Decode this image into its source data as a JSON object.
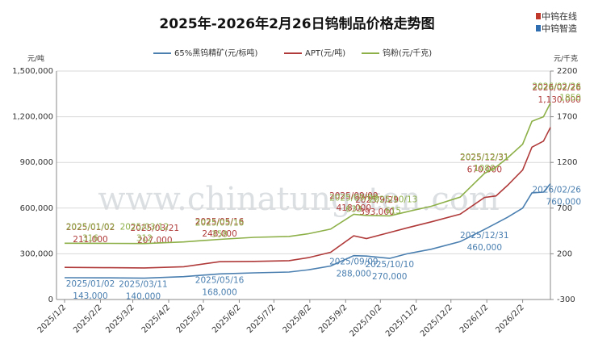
{
  "chart_data": {
    "type": "line",
    "title": "2025年-2026年2月26日钨制品价格走势图",
    "brand": [
      "中钨在线",
      "中钨智造"
    ],
    "watermark": "www.chinatungsten.com",
    "ylabel": "元/吨",
    "y2label": "元/千克",
    "xlim": [
      "2025/1/2",
      "2026/2/26"
    ],
    "xticks": [
      "2025/1/2",
      "2025/2/2",
      "2025/3/2",
      "2025/4/2",
      "2025/5/2",
      "2025/6/2",
      "2025/7/2",
      "2025/8/2",
      "2025/9/2",
      "2025/10/2",
      "2025/11/2",
      "2025/12/2",
      "2026/1/2",
      "2026/2/2"
    ],
    "ylim": [
      0,
      1500000
    ],
    "yticks": [
      0,
      {
        "value": 300000,
        "label": "300,000"
      },
      {
        "value": 600000,
        "label": "600,000"
      },
      {
        "value": 900000,
        "label": "900,000"
      },
      {
        "value": 1200000,
        "label": "1,200,000"
      },
      {
        "value": 1500000,
        "label": "1,500,000"
      }
    ],
    "y2lim": [
      -300,
      2200
    ],
    "y2ticks": [
      -300,
      200,
      700,
      1200,
      1700,
      2200
    ],
    "grid": true,
    "x": [
      "2025/1/2",
      "2025/2/10",
      "2025/3/12",
      "2025/4/15",
      "2025/5/16",
      "2025/6/15",
      "2025/7/15",
      "2025/8/1",
      "2025/8/20",
      "2025/9/9",
      "2025/9/20",
      "2025/10/10",
      "2025/10/25",
      "2025/11/15",
      "2025/12/10",
      "2025/12/31",
      "2026/1/10",
      "2026/1/20",
      "2026/2/2",
      "2026/2/10",
      "2026/2/20",
      "2026/2/26"
    ],
    "series": [
      {
        "name": "65%黑钨精矿(元/标吨)",
        "color": "#4a7fb0",
        "values": [
          143000,
          142000,
          140000,
          150000,
          168000,
          175000,
          180000,
          195000,
          220000,
          288000,
          285000,
          270000,
          300000,
          330000,
          380000,
          460000,
          500000,
          540000,
          600000,
          700000,
          705000,
          760000
        ],
        "annotations": [
          {
            "date": "2025/01/02",
            "value": 143000,
            "label": "143,000"
          },
          {
            "date": "2025/03/11",
            "value": 140000,
            "label": "140,000"
          },
          {
            "date": "2025/05/16",
            "value": 168000,
            "label": "168,000"
          },
          {
            "date": "2025/09/09",
            "value": 288000,
            "label": "288,000"
          },
          {
            "date": "2025/10/10",
            "value": 270000,
            "label": "270,000"
          },
          {
            "date": "2025/12/31",
            "value": 460000,
            "label": "460,000"
          },
          {
            "date": "2026/02/26",
            "value": 760000,
            "label": "760,000"
          }
        ]
      },
      {
        "name": "APT(元/吨)",
        "color": "#b03a3a",
        "values": [
          211000,
          209000,
          207000,
          215000,
          248000,
          250000,
          255000,
          275000,
          310000,
          418000,
          400000,
          440000,
          470000,
          510000,
          560000,
          670000,
          680000,
          750000,
          850000,
          1000000,
          1040000,
          1130000
        ],
        "annotations": [
          {
            "date": "2025/01/02",
            "value": 211000,
            "label": "211,000"
          },
          {
            "date": "2025/03/21",
            "value": 207000,
            "label": "207,000"
          },
          {
            "date": "2025/05/16",
            "value": 248000,
            "label": "248,000"
          },
          {
            "date": "2025/09/09",
            "value": 418000,
            "label": "418,000"
          },
          {
            "date": "2025/9/29",
            "value": 393000,
            "label": "393,000"
          },
          {
            "date": "2025/12/31",
            "value": 670000,
            "label": "670,000"
          },
          {
            "date": "2026/02/26",
            "value": 1130000,
            "label": "1,130,000"
          }
        ]
      },
      {
        "name": "钨粉(元/千克)",
        "color": "#8db048",
        "axis": "y2",
        "values": [
          316,
          314,
          312,
          330,
          358,
          380,
          390,
          420,
          470,
          633,
          620,
          615,
          660,
          720,
          820,
          1080,
          1150,
          1250,
          1400,
          1650,
          1700,
          1850
        ],
        "annotations": [
          {
            "date": "2025/01/02",
            "value": 316
          },
          {
            "date": "2025/03/12",
            "value": 312
          },
          {
            "date": "2025/05/16",
            "value": 358
          },
          {
            "date": "2025/09/09",
            "value": 633
          },
          {
            "date": "2025/10/13",
            "value": 615
          },
          {
            "date": "2025/12/31",
            "value": 1080
          },
          {
            "date": "2026/02/26",
            "value": 1850
          }
        ]
      }
    ]
  }
}
